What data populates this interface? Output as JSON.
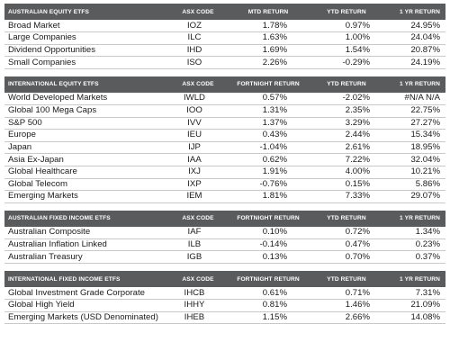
{
  "tables": [
    {
      "id": "australian-equity",
      "header": {
        "name": "AUSTRALIAN EQUITY ETFs",
        "code": "ASX CODE",
        "period": "MTD RETURN",
        "ytd": "YTD RETURN",
        "yr": "1 YR RETURN"
      },
      "rows": [
        {
          "name": "Broad Market",
          "code": "IOZ",
          "period": "1.78%",
          "ytd": "0.97%",
          "yr": "24.95%"
        },
        {
          "name": "Large Companies",
          "code": "ILC",
          "period": "1.63%",
          "ytd": "1.00%",
          "yr": "24.04%"
        },
        {
          "name": "Dividend Opportunities",
          "code": "IHD",
          "period": "1.69%",
          "ytd": "1.54%",
          "yr": "20.87%"
        },
        {
          "name": "Small Companies",
          "code": "ISO",
          "period": "2.26%",
          "ytd": "-0.29%",
          "yr": "24.19%"
        }
      ]
    },
    {
      "id": "international-equity",
      "header": {
        "name": "INTERNATIONAL EQUITY ETFs",
        "code": "ASX CODE",
        "period": "FORTNIGHT RETURN",
        "ytd": "YTD RETURN",
        "yr": "1 YR RETURN"
      },
      "rows": [
        {
          "name": "World Developed Markets",
          "code": "IWLD",
          "period": "0.57%",
          "ytd": "-2.02%",
          "yr": "#N/A N/A"
        },
        {
          "name": "Global 100 Mega Caps",
          "code": "IOO",
          "period": "1.31%",
          "ytd": "2.35%",
          "yr": "22.75%"
        },
        {
          "name": "S&P 500",
          "code": "IVV",
          "period": "1.37%",
          "ytd": "3.29%",
          "yr": "27.27%"
        },
        {
          "name": "Europe",
          "code": "IEU",
          "period": "0.43%",
          "ytd": "2.44%",
          "yr": "15.34%"
        },
        {
          "name": "Japan",
          "code": "IJP",
          "period": "-1.04%",
          "ytd": "2.61%",
          "yr": "18.95%"
        },
        {
          "name": "Asia Ex-Japan",
          "code": "IAA",
          "period": "0.62%",
          "ytd": "7.22%",
          "yr": "32.04%"
        },
        {
          "name": "Global Healthcare",
          "code": "IXJ",
          "period": "1.91%",
          "ytd": "4.00%",
          "yr": "10.21%"
        },
        {
          "name": "Global Telecom",
          "code": "IXP",
          "period": "-0.76%",
          "ytd": "0.15%",
          "yr": "5.86%"
        },
        {
          "name": "Emerging Markets",
          "code": "IEM",
          "period": "1.81%",
          "ytd": "7.33%",
          "yr": "29.07%"
        }
      ]
    },
    {
      "id": "australian-fixed-income",
      "header": {
        "name": "AUSTRALIAN FIXED INCOME ETFs",
        "code": "ASX CODE",
        "period": "FORTNIGHT RETURN",
        "ytd": "YTD RETURN",
        "yr": "1 YR RETURN"
      },
      "rows": [
        {
          "name": "Australian Composite",
          "code": "IAF",
          "period": "0.10%",
          "ytd": "0.72%",
          "yr": "1.34%"
        },
        {
          "name": "Australian Inflation Linked",
          "code": "ILB",
          "period": "-0.14%",
          "ytd": "0.47%",
          "yr": "0.23%"
        },
        {
          "name": "Australian Treasury",
          "code": "IGB",
          "period": "0.13%",
          "ytd": "0.70%",
          "yr": "0.37%"
        }
      ]
    },
    {
      "id": "international-fixed-income",
      "header": {
        "name": "INTERNATIONAL FIXED INCOME ETFs",
        "code": "ASX CODE",
        "period": "FORTNIGHT RETURN",
        "ytd": "YTD RETURN",
        "yr": "1 YR RETURN"
      },
      "rows": [
        {
          "name": "Global Investment Grade Corporate",
          "code": "IHCB",
          "period": "0.61%",
          "ytd": "0.71%",
          "yr": "7.31%"
        },
        {
          "name": "Global High Yield",
          "code": "IHHY",
          "period": "0.81%",
          "ytd": "1.46%",
          "yr": "21.09%"
        },
        {
          "name": "Emerging Markets (USD Denominated)",
          "code": "IHEB",
          "period": "1.15%",
          "ytd": "2.66%",
          "yr": "14.08%"
        }
      ]
    }
  ],
  "colors": {
    "header_bg": "#5a5b5d",
    "header_text": "#ffffff",
    "row_divider": "#c9c9c9",
    "body_text": "#1a1a1a"
  }
}
